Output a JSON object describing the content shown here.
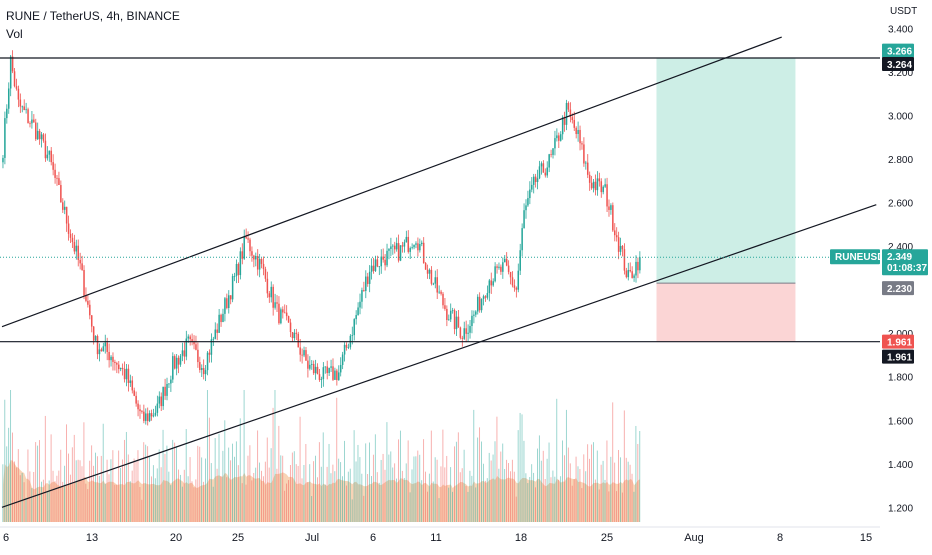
{
  "header": {
    "title": "RUNE / TetherUS, 4h, BINANCE",
    "volume_label": "Vol"
  },
  "price_axis": {
    "currency": "USDT",
    "ticks": [
      "3.400",
      "3.200",
      "3.000",
      "2.800",
      "2.600",
      "2.400",
      "2.000",
      "1.800",
      "1.600",
      "1.400",
      "1.200"
    ]
  },
  "time_axis": {
    "labels": [
      "6",
      "13",
      "20",
      "25",
      "Jul",
      "6",
      "11",
      "18",
      "25",
      "Aug",
      "8",
      "15"
    ]
  },
  "badges": {
    "target_price": "3.266",
    "resistance_price": "3.264",
    "symbol": "RUNEUSDT",
    "last_price": "2.349",
    "countdown": "01:08:37",
    "entry_price": "2.230",
    "stop_price": "1.961",
    "support_price": "1.961"
  },
  "colors": {
    "up": "#26a69a",
    "down": "#ef5350",
    "profit_zone": "#cdeee6",
    "loss_zone": "#fbd5d5",
    "volume_area": "#f6c59d",
    "line": "#131722",
    "badge_green": "#26a69a",
    "badge_red": "#ef5350",
    "badge_dark": "#131722",
    "badge_gray": "#787b86"
  },
  "chart_data": {
    "type": "candlestick",
    "symbol": "RUNE / TetherUS",
    "interval": "4h",
    "exchange": "BINANCE",
    "ylim": [
      1.15,
      3.45
    ],
    "price_path": [
      {
        "bar": 0,
        "price": 2.85
      },
      {
        "bar": 4,
        "price": 3.25
      },
      {
        "bar": 8,
        "price": 3.05
      },
      {
        "bar": 16,
        "price": 2.95
      },
      {
        "bar": 24,
        "price": 2.8
      },
      {
        "bar": 32,
        "price": 2.55
      },
      {
        "bar": 40,
        "price": 2.3
      },
      {
        "bar": 48,
        "price": 1.95
      },
      {
        "bar": 56,
        "price": 1.9
      },
      {
        "bar": 64,
        "price": 1.8
      },
      {
        "bar": 72,
        "price": 1.6
      },
      {
        "bar": 80,
        "price": 1.65
      },
      {
        "bar": 88,
        "price": 1.85
      },
      {
        "bar": 96,
        "price": 1.95
      },
      {
        "bar": 104,
        "price": 1.85
      },
      {
        "bar": 112,
        "price": 2.05
      },
      {
        "bar": 120,
        "price": 2.25
      },
      {
        "bar": 126,
        "price": 2.43
      },
      {
        "bar": 134,
        "price": 2.3
      },
      {
        "bar": 142,
        "price": 2.1
      },
      {
        "bar": 150,
        "price": 2.0
      },
      {
        "bar": 158,
        "price": 1.85
      },
      {
        "bar": 166,
        "price": 1.8
      },
      {
        "bar": 174,
        "price": 1.82
      },
      {
        "bar": 182,
        "price": 2.05
      },
      {
        "bar": 190,
        "price": 2.3
      },
      {
        "bar": 198,
        "price": 2.35
      },
      {
        "bar": 206,
        "price": 2.38
      },
      {
        "bar": 214,
        "price": 2.45
      },
      {
        "bar": 222,
        "price": 2.25
      },
      {
        "bar": 230,
        "price": 2.1
      },
      {
        "bar": 238,
        "price": 2.0
      },
      {
        "bar": 244,
        "price": 2.08
      },
      {
        "bar": 252,
        "price": 2.25
      },
      {
        "bar": 260,
        "price": 2.3
      },
      {
        "bar": 266,
        "price": 2.2
      },
      {
        "bar": 270,
        "price": 2.55
      },
      {
        "bar": 276,
        "price": 2.7
      },
      {
        "bar": 284,
        "price": 2.8
      },
      {
        "bar": 292,
        "price": 3.02
      },
      {
        "bar": 298,
        "price": 2.9
      },
      {
        "bar": 304,
        "price": 2.7
      },
      {
        "bar": 312,
        "price": 2.65
      },
      {
        "bar": 318,
        "price": 2.45
      },
      {
        "bar": 324,
        "price": 2.25
      },
      {
        "bar": 330,
        "price": 2.349
      }
    ],
    "trend_lines": [
      {
        "name": "channel-upper",
        "from": {
          "bar": 0,
          "price": 2.03
        },
        "to": {
          "bar": 404,
          "price": 3.36
        }
      },
      {
        "name": "channel-lower",
        "from": {
          "bar": 0,
          "price": 1.2
        },
        "to": {
          "bar": 453,
          "price": 2.59
        }
      }
    ],
    "horizontal_levels": [
      3.264,
      1.961
    ],
    "position": {
      "entry": 2.23,
      "target": 3.266,
      "stop": 1.961,
      "from_bar": 336,
      "to_bar": 408
    },
    "last_price": 2.349
  }
}
